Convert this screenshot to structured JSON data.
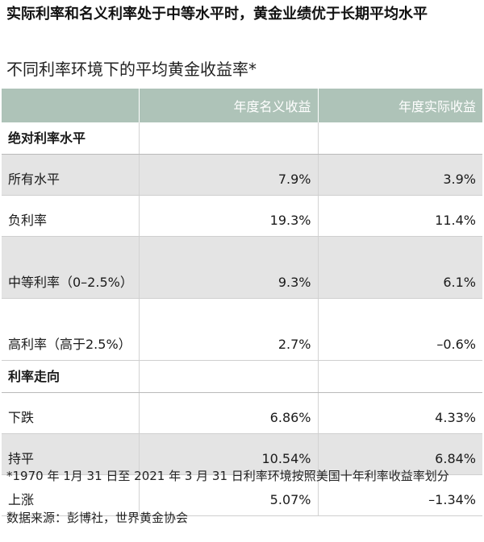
{
  "headline": "实际利率和名义利率处于中等水平时，黄金业绩优于长期平均水平",
  "chart_data": {
    "type": "table",
    "title": "不同利率环境下的平均黄金收益率*",
    "columns": [
      "",
      "年度名义收益",
      "年度实际收益"
    ],
    "sections": [
      {
        "name": "绝对利率水平",
        "rows": [
          {
            "label": "所有水平",
            "nominal": "7.9%",
            "real": "3.9%"
          },
          {
            "label": "负利率",
            "nominal": "19.3%",
            "real": "11.4%"
          },
          {
            "label": "中等利率（0–2.5%）",
            "nominal": "9.3%",
            "real": "6.1%"
          },
          {
            "label": "高利率（高于2.5%）",
            "nominal": "2.7%",
            "real": "–0.6%"
          }
        ]
      },
      {
        "name": "利率走向",
        "rows": [
          {
            "label": "下跌",
            "nominal": "6.86%",
            "real": "4.33%"
          },
          {
            "label": "持平",
            "nominal": "10.54%",
            "real": "6.84%"
          },
          {
            "label": "上涨",
            "nominal": "5.07%",
            "real": "–1.34%"
          }
        ]
      }
    ]
  },
  "footnote": "*1970 年 1月 31 日至 2021 年 3 月 31 日利率环境按照美国十年利率收益率划分",
  "source": "数据来源：彭博社，世界黄金协会"
}
